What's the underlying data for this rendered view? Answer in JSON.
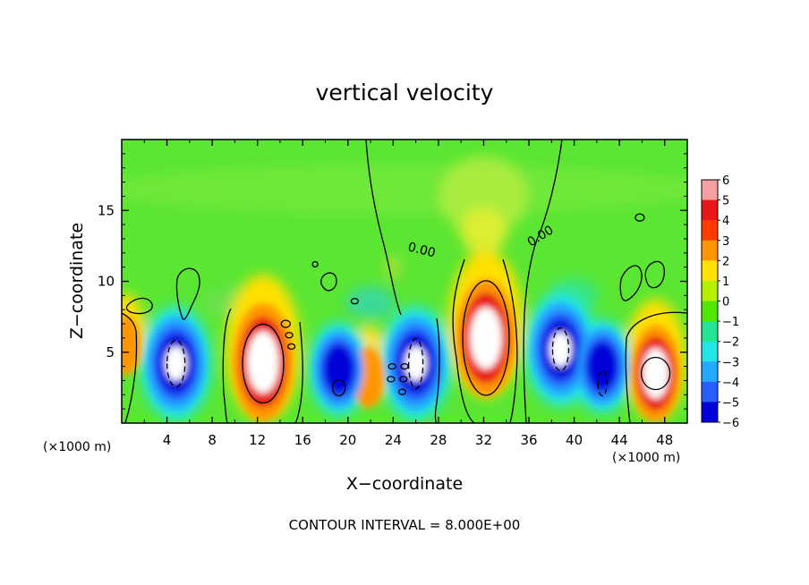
{
  "chart_data": {
    "type": "heatmap",
    "title": "vertical velocity",
    "xlabel": "X−coordinate",
    "ylabel": "Z−coordinate",
    "x_unit_left": "(×1000 m)",
    "x_unit_right": "(×1000 m)",
    "xlim": [
      0,
      50
    ],
    "ylim": [
      0,
      20
    ],
    "x_ticks": [
      "4",
      "8",
      "12",
      "16",
      "20",
      "24",
      "28",
      "32",
      "36",
      "40",
      "44",
      "48"
    ],
    "x_tick_values": [
      4,
      8,
      12,
      16,
      20,
      24,
      28,
      32,
      36,
      40,
      44,
      48
    ],
    "y_ticks": [
      "5",
      "10",
      "15"
    ],
    "y_tick_values": [
      5,
      10,
      15
    ],
    "colorbar": {
      "labels": [
        "6",
        "5",
        "4",
        "3",
        "2",
        "1",
        "0",
        "−1",
        "−2",
        "−3",
        "−4",
        "−5",
        "−6"
      ],
      "colors": [
        "#f4a0a0",
        "#e81818",
        "#ff3c00",
        "#ff9600",
        "#ffe000",
        "#b4f000",
        "#50e600",
        "#22e690",
        "#22e6e6",
        "#22aaff",
        "#2860ff",
        "#0000d8",
        "#7800a8"
      ]
    },
    "contour_labels": [
      "0.00",
      "0.00"
    ],
    "footer": "CONTOUR INTERVAL = 8.000E+00",
    "background_color": "#5ae632",
    "features": [
      {
        "kind": "updraft",
        "x": 12.5,
        "z": 4.3,
        "peak": 12
      },
      {
        "kind": "updraft",
        "x": 32.2,
        "z": 6.0,
        "peak": 14
      },
      {
        "kind": "updraft",
        "x": 47.2,
        "z": 3.5,
        "peak": 9
      },
      {
        "kind": "updraft",
        "x": 0.3,
        "z": 5.5,
        "peak": 4
      },
      {
        "kind": "updraft",
        "x": 21.8,
        "z": 3.2,
        "peak": 4
      },
      {
        "kind": "downdraft",
        "x": 4.8,
        "z": 4.2,
        "peak": -12
      },
      {
        "kind": "downdraft",
        "x": 19.2,
        "z": 3.8,
        "peak": -9
      },
      {
        "kind": "downdraft",
        "x": 26.0,
        "z": 4.2,
        "peak": -12
      },
      {
        "kind": "downdraft",
        "x": 38.8,
        "z": 5.2,
        "peak": -12
      },
      {
        "kind": "downdraft",
        "x": 42.5,
        "z": 4.0,
        "peak": -9
      }
    ]
  }
}
